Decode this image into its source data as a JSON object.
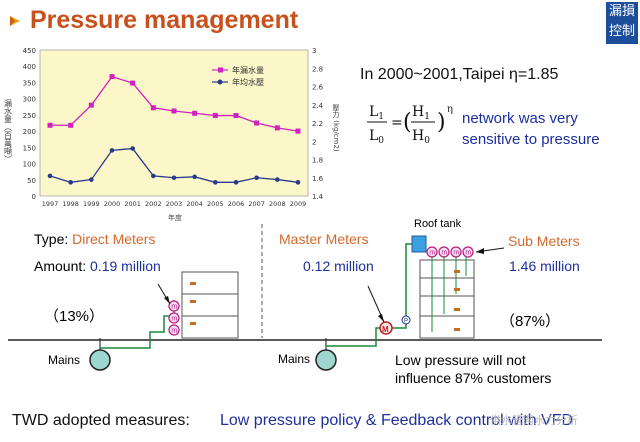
{
  "header": {
    "title": "Pressure management",
    "logo_text": "漏损控制"
  },
  "chart_data": {
    "type": "line",
    "x": [
      "1997",
      "1998",
      "1999",
      "2000",
      "2001",
      "2002",
      "2003",
      "2004",
      "2005",
      "2006",
      "2007",
      "2008",
      "2009"
    ],
    "ylim_left": [
      0,
      450
    ],
    "ylim_right": [
      1.4,
      3.0
    ],
    "yticks_left": [
      "0",
      "50",
      "100",
      "150",
      "200",
      "250",
      "300",
      "350",
      "400",
      "450"
    ],
    "yticks_right": [
      "1.4",
      "1.6",
      "1.8",
      "2",
      "2.2",
      "2.4",
      "2.6",
      "2.8",
      "3"
    ],
    "ylabel_left": "漏水量（百萬噸）",
    "ylabel_right": "壓力 (kg/cm2)",
    "xlabel": "年度",
    "series": [
      {
        "name": "年漏水量",
        "axis": "left",
        "color": "#d020c0",
        "values": [
          218,
          218,
          280,
          368,
          348,
          272,
          262,
          255,
          248,
          248,
          225,
          210,
          200
        ]
      },
      {
        "name": "年均水壓",
        "axis": "right",
        "color": "#2a3a8a",
        "values": [
          1.62,
          1.55,
          1.58,
          1.9,
          1.92,
          1.62,
          1.6,
          1.61,
          1.55,
          1.55,
          1.6,
          1.58,
          1.55
        ]
      }
    ],
    "grid": false,
    "legend_position": "top-right"
  },
  "equation": {
    "title": "In 2000~2001,Taipei η=1.85",
    "exponent": "η",
    "description_line1": "network was very",
    "description_line2": "sensitive to pressure"
  },
  "diagram": {
    "type_label": "Type:",
    "direct_meters": "Direct Meters",
    "amount_label": "Amount:",
    "direct_amount": "0.19 million",
    "direct_pct": "（13%）",
    "mains_left": "Mains",
    "master_meters": "Master Meters",
    "master_amount": "0.12 million",
    "roof_tank": "Roof tank",
    "sub_meters": "Sub Meters",
    "sub_amount": "1.46 million",
    "sub_pct": "（87%）",
    "mains_right": "Mains",
    "low_pressure_line1": "Low pressure will not",
    "low_pressure_line2": "influence 87% customers",
    "meter_letter": "m",
    "master_letter": "M",
    "pump_letter": "P"
  },
  "footer": {
    "adopted_label": "TWD adopted measures:",
    "measures": "Low pressure policy & Feedback control with VFD",
    "watermark": "供水管网水力分析"
  },
  "colors": {
    "title": "#c8501c",
    "accent_blue": "#1d2f9c",
    "accent_orange": "#d2692a",
    "chart_bg": "#fbf7c8",
    "pipe_green": "#1a8a3a"
  }
}
